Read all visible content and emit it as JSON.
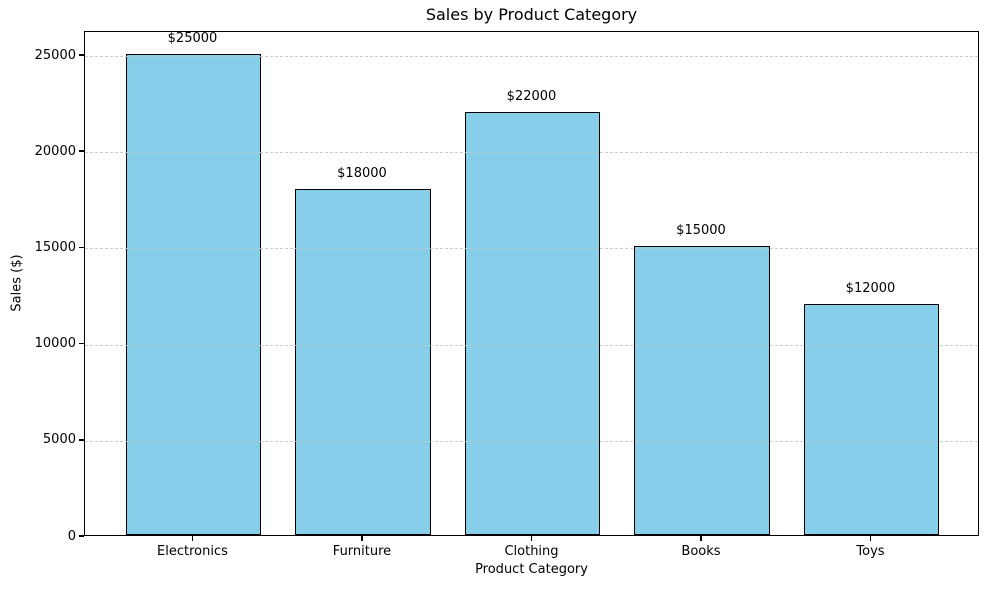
{
  "figure": {
    "background": "#ffffff"
  },
  "chart_data": {
    "type": "bar",
    "title": "Sales by Product Category",
    "xlabel": "Product Category",
    "ylabel": "Sales ($)",
    "categories": [
      "Electronics",
      "Furniture",
      "Clothing",
      "Books",
      "Toys"
    ],
    "values": [
      25000,
      18000,
      22000,
      15000,
      12000
    ],
    "value_labels": [
      "$25000",
      "$18000",
      "$22000",
      "$15000",
      "$12000"
    ],
    "yticks": [
      0,
      5000,
      10000,
      15000,
      20000,
      25000
    ],
    "ytick_labels": [
      "0",
      "5000",
      "10000",
      "15000",
      "20000",
      "25000"
    ],
    "ylim": [
      0,
      26250
    ],
    "grid": "horizontal-dashed",
    "grid_color": "#c4c4c4",
    "legend": "none",
    "bar_color": "#87CEEB",
    "bar_edge_color": "#000000",
    "text_color": "#000000"
  }
}
